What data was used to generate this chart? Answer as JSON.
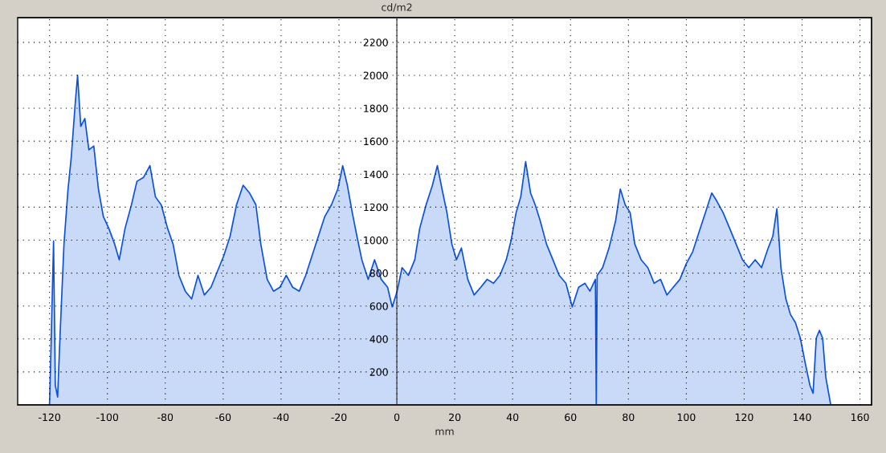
{
  "chart_data": {
    "type": "area",
    "xlabel": "mm",
    "ylabel": "cd/m2",
    "xlim": [
      -131,
      164
    ],
    "ylim": [
      0,
      2350
    ],
    "xticks": [
      -120,
      -100,
      -80,
      -60,
      -40,
      -20,
      0,
      20,
      40,
      60,
      80,
      100,
      120,
      140,
      160
    ],
    "yticks": [
      200,
      400,
      600,
      800,
      1000,
      1200,
      1400,
      1600,
      1800,
      2000,
      2200
    ],
    "grid": true,
    "series": [
      {
        "color": "#0a50e0",
        "x": [
          -120,
          -119.4,
          -118.6,
          -118,
          -117.2,
          -116.4,
          -115,
          -113.6,
          -112.5,
          -111.1,
          -110.3,
          -109.2,
          -107.8,
          -106.4,
          -104.7,
          -103.1,
          -101.4,
          -99.5,
          -97.5,
          -95.9,
          -93.9,
          -91.7,
          -89.8,
          -87.5,
          -85.3,
          -83.4,
          -81.4,
          -79.2,
          -77.3,
          -75.3,
          -73.1,
          -70.9,
          -68.7,
          -66.5,
          -64.2,
          -62,
          -59.8,
          -57.6,
          -55.4,
          -53.1,
          -50.9,
          -48.7,
          -47,
          -44.8,
          -42.6,
          -40.4,
          -38.2,
          -36,
          -33.7,
          -31.5,
          -29.3,
          -27.1,
          -24.9,
          -22.6,
          -20.4,
          -18.7,
          -17.1,
          -15.4,
          -13.8,
          -12.1,
          -9.9,
          -7.7,
          -5.4,
          -3.2,
          -1.6,
          0.1,
          1.8,
          4,
          6.2,
          7.9,
          10.1,
          12.3,
          14,
          15.6,
          17.3,
          19,
          20.6,
          22.3,
          24.5,
          26.7,
          29,
          31.2,
          33.4,
          35.6,
          37.8,
          39.5,
          41.2,
          42.8,
          44.5,
          46.2,
          47.8,
          49.5,
          51.7,
          53.9,
          56.1,
          58.4,
          60.6,
          62.8,
          65,
          66.7,
          68.6,
          68.9,
          69.2,
          71.1,
          73.3,
          75.6,
          77.2,
          78.9,
          80.6,
          82.2,
          84.4,
          86.7,
          88.9,
          91.1,
          93.3,
          95.5,
          97.8,
          100,
          102.2,
          104.4,
          106.6,
          108.8,
          110.5,
          112.7,
          115,
          117.2,
          119.4,
          121.6,
          123.8,
          126,
          128.3,
          129.9,
          131.3,
          132.7,
          134.4,
          136,
          137.7,
          139.4,
          141,
          142.7,
          143.8,
          144.9,
          146,
          147.1,
          148.2,
          149.9
        ],
        "values": [
          0,
          405,
          995,
          120,
          48,
          405,
          976,
          1310,
          1500,
          1833,
          2000,
          1690,
          1738,
          1548,
          1571,
          1310,
          1143,
          1071,
          976,
          881,
          1071,
          1214,
          1357,
          1381,
          1452,
          1262,
          1214,
          1071,
          976,
          786,
          690,
          643,
          786,
          667,
          714,
          810,
          905,
          1024,
          1214,
          1333,
          1286,
          1214,
          976,
          762,
          690,
          714,
          786,
          714,
          690,
          786,
          905,
          1024,
          1143,
          1214,
          1310,
          1452,
          1333,
          1167,
          1024,
          881,
          762,
          881,
          762,
          714,
          595,
          690,
          833,
          786,
          881,
          1071,
          1214,
          1333,
          1452,
          1310,
          1167,
          976,
          881,
          952,
          762,
          667,
          714,
          762,
          738,
          786,
          881,
          1000,
          1167,
          1262,
          1476,
          1286,
          1214,
          1119,
          976,
          881,
          786,
          738,
          595,
          714,
          738,
          690,
          762,
          0,
          786,
          833,
          952,
          1119,
          1310,
          1214,
          1167,
          976,
          881,
          833,
          738,
          762,
          667,
          714,
          762,
          857,
          929,
          1048,
          1167,
          1286,
          1238,
          1167,
          1071,
          976,
          881,
          833,
          881,
          833,
          952,
          1024,
          1190,
          833,
          643,
          548,
          500,
          405,
          262,
          119,
          71,
          405,
          452,
          405,
          167,
          0
        ]
      }
    ]
  }
}
